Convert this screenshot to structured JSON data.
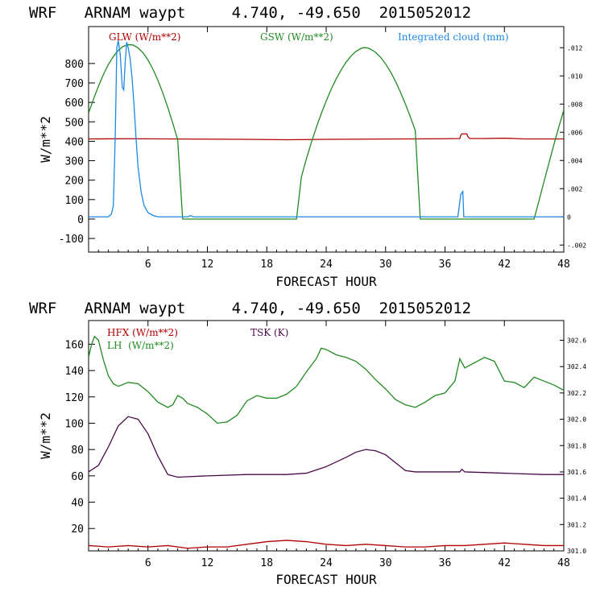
{
  "chart_data": [
    {
      "type": "line",
      "title": "WRF   ARNAM waypt     4.740, -49.650  2015052012",
      "xlabel": "FORECAST HOUR",
      "ylabel": "W/m**2",
      "xlim": [
        0,
        48
      ],
      "ylim": [
        -170,
        990
      ],
      "xticks": [
        6,
        12,
        18,
        24,
        30,
        36,
        42,
        48
      ],
      "yticks": [
        -100,
        0,
        100,
        200,
        300,
        400,
        500,
        600,
        700,
        800
      ],
      "y2lim": [
        -0.0025,
        0.0135
      ],
      "y2ticks": [
        -0.002,
        0,
        0.002,
        0.004,
        0.006,
        0.008,
        0.01,
        0.012
      ],
      "y2ticklabels": [
        "-.002",
        "0",
        ".002",
        ".004",
        ".006",
        ".008",
        ".010",
        ".012"
      ],
      "grid": false,
      "legend_position": "top",
      "series": [
        {
          "name": "GLW (W/m**2)",
          "axis": "left",
          "color": "#b00000",
          "points": [
            [
              0,
              412
            ],
            [
              4,
              413
            ],
            [
              8,
              412
            ],
            [
              12,
              411
            ],
            [
              16,
              410
            ],
            [
              20,
              408
            ],
            [
              24,
              410
            ],
            [
              28,
              411
            ],
            [
              32,
              412
            ],
            [
              36,
              413
            ],
            [
              37.5,
              414
            ],
            [
              37.6,
              432
            ],
            [
              37.7,
              438
            ],
            [
              38.2,
              438
            ],
            [
              38.3,
              425
            ],
            [
              38.5,
              414
            ],
            [
              40,
              414
            ],
            [
              42,
              416
            ],
            [
              44,
              412
            ],
            [
              48,
              412
            ]
          ]
        },
        {
          "name": "GSW (W/m**2)",
          "axis": "left",
          "color": "#228b22",
          "points": [
            [
              0,
              545
            ],
            [
              0.5,
              618
            ],
            [
              1,
              684
            ],
            [
              1.5,
              744
            ],
            [
              2,
              795
            ],
            [
              2.5,
              836
            ],
            [
              3,
              868
            ],
            [
              3.5,
              888
            ],
            [
              4,
              897
            ],
            [
              4.5,
              895
            ],
            [
              5,
              880
            ],
            [
              5.5,
              855
            ],
            [
              6,
              818
            ],
            [
              6.5,
              771
            ],
            [
              7,
              714
            ],
            [
              7.5,
              648
            ],
            [
              8,
              574
            ],
            [
              8.5,
              493
            ],
            [
              9,
              407
            ],
            [
              9.5,
              0
            ],
            [
              21,
              0
            ],
            [
              21.5,
              218
            ],
            [
              22,
              310
            ],
            [
              22.5,
              393
            ],
            [
              23,
              471
            ],
            [
              23.5,
              542
            ],
            [
              24,
              607
            ],
            [
              24.5,
              667
            ],
            [
              25,
              720
            ],
            [
              25.5,
              766
            ],
            [
              26,
              806
            ],
            [
              26.5,
              838
            ],
            [
              27,
              862
            ],
            [
              27.5,
              877
            ],
            [
              27.8,
              882
            ],
            [
              28.2,
              880
            ],
            [
              28.5,
              873
            ],
            [
              29,
              857
            ],
            [
              29.5,
              832
            ],
            [
              30,
              798
            ],
            [
              30.5,
              757
            ],
            [
              31,
              708
            ],
            [
              31.5,
              653
            ],
            [
              32,
              592
            ],
            [
              32.5,
              526
            ],
            [
              33,
              455
            ],
            [
              33.5,
              0
            ],
            [
              45,
              0
            ],
            [
              45.5,
              95
            ],
            [
              46,
              192
            ],
            [
              46.5,
              288
            ],
            [
              47,
              383
            ],
            [
              47.5,
              474
            ],
            [
              48,
              560
            ]
          ]
        },
        {
          "name": "Integrated cloud (mm)",
          "axis": "right",
          "color": "#1e88e5",
          "points": [
            [
              0,
              0
            ],
            [
              2.0,
              0
            ],
            [
              2.3,
              0.0002
            ],
            [
              2.5,
              0.0008
            ],
            [
              2.7,
              0.006
            ],
            [
              2.85,
              0.012
            ],
            [
              3.0,
              0.0125
            ],
            [
              3.2,
              0.0115
            ],
            [
              3.4,
              0.0092
            ],
            [
              3.55,
              0.009
            ],
            [
              3.7,
              0.011
            ],
            [
              3.85,
              0.0124
            ],
            [
              4.0,
              0.012
            ],
            [
              4.2,
              0.0112
            ],
            [
              4.4,
              0.0098
            ],
            [
              4.6,
              0.0078
            ],
            [
              4.8,
              0.0055
            ],
            [
              5.0,
              0.0035
            ],
            [
              5.3,
              0.0018
            ],
            [
              5.6,
              0.0008
            ],
            [
              6.0,
              0.0003
            ],
            [
              6.5,
              0.0001
            ],
            [
              7.0,
              0
            ],
            [
              10,
              0
            ],
            [
              10.3,
              8e-05
            ],
            [
              10.6,
              0
            ],
            [
              37.3,
              0
            ],
            [
              37.45,
              0.0008
            ],
            [
              37.6,
              0.0016
            ],
            [
              37.8,
              0.0018
            ],
            [
              37.9,
              0
            ],
            [
              48,
              0
            ]
          ]
        }
      ]
    },
    {
      "type": "line",
      "title": "WRF   ARNAM waypt     4.740, -49.650  2015052012",
      "xlabel": "FORECAST HOUR",
      "ylabel": "W/m**2",
      "xlim": [
        0,
        48
      ],
      "ylim": [
        3,
        178
      ],
      "xticks": [
        6,
        12,
        18,
        24,
        30,
        36,
        42,
        48
      ],
      "yticks": [
        20,
        40,
        60,
        80,
        100,
        120,
        140,
        160
      ],
      "y2lim": [
        301.0,
        302.75
      ],
      "y2ticks": [
        301.0,
        301.2,
        301.4,
        301.6,
        301.8,
        302.0,
        302.2,
        302.4,
        302.6
      ],
      "y2ticklabels": [
        "301.0",
        "301.2",
        "301.4",
        "301.6",
        "301.8",
        "302.0",
        "302.2",
        "302.4",
        "302.6"
      ],
      "grid": false,
      "legend_position": "top",
      "series": [
        {
          "name": "HFX (W/m**2)",
          "axis": "left",
          "color": "#b00000",
          "points": [
            [
              0,
              7
            ],
            [
              2,
              6
            ],
            [
              4,
              7
            ],
            [
              6,
              6
            ],
            [
              8,
              7
            ],
            [
              10,
              5
            ],
            [
              12,
              6
            ],
            [
              14,
              6
            ],
            [
              16,
              8
            ],
            [
              18,
              10
            ],
            [
              20,
              11
            ],
            [
              22,
              10
            ],
            [
              24,
              8
            ],
            [
              26,
              7
            ],
            [
              28,
              8
            ],
            [
              30,
              7
            ],
            [
              32,
              6
            ],
            [
              34,
              6
            ],
            [
              36,
              7
            ],
            [
              38,
              7
            ],
            [
              40,
              8
            ],
            [
              42,
              9
            ],
            [
              44,
              8
            ],
            [
              46,
              7
            ],
            [
              48,
              7
            ]
          ]
        },
        {
          "name": "LH  (W/m**2)",
          "axis": "left",
          "color": "#228b22",
          "points": [
            [
              0,
              150
            ],
            [
              0.3,
              160
            ],
            [
              0.6,
              166
            ],
            [
              1,
              163
            ],
            [
              1.5,
              148
            ],
            [
              2,
              136
            ],
            [
              2.5,
              130
            ],
            [
              3,
              128
            ],
            [
              4,
              131
            ],
            [
              5,
              130
            ],
            [
              6,
              124
            ],
            [
              7,
              116
            ],
            [
              8,
              112
            ],
            [
              8.5,
              114
            ],
            [
              9,
              121
            ],
            [
              9.5,
              119
            ],
            [
              10,
              115
            ],
            [
              11,
              112
            ],
            [
              12,
              107
            ],
            [
              13,
              100
            ],
            [
              14,
              101
            ],
            [
              15,
              106
            ],
            [
              16,
              117
            ],
            [
              17,
              121
            ],
            [
              18,
              119
            ],
            [
              19,
              119
            ],
            [
              20,
              122
            ],
            [
              21,
              128
            ],
            [
              22,
              139
            ],
            [
              23,
              149
            ],
            [
              23.5,
              157
            ],
            [
              24,
              156
            ],
            [
              25,
              152
            ],
            [
              26,
              150
            ],
            [
              27,
              147
            ],
            [
              28,
              141
            ],
            [
              29,
              133
            ],
            [
              30,
              126
            ],
            [
              31,
              118
            ],
            [
              32,
              114
            ],
            [
              33,
              112
            ],
            [
              34,
              116
            ],
            [
              35,
              121
            ],
            [
              36,
              123
            ],
            [
              37,
              132
            ],
            [
              37.5,
              149
            ],
            [
              38,
              142
            ],
            [
              39,
              146
            ],
            [
              40,
              150
            ],
            [
              41,
              147
            ],
            [
              42,
              132
            ],
            [
              43,
              131
            ],
            [
              44,
              127
            ],
            [
              45,
              135
            ],
            [
              46,
              132
            ],
            [
              47,
              129
            ],
            [
              48,
              125
            ]
          ]
        },
        {
          "name": "TSK (K)",
          "axis": "left",
          "color": "#4a0a4a",
          "points": [
            [
              0,
              63
            ],
            [
              1,
              68
            ],
            [
              2,
              82
            ],
            [
              3,
              98
            ],
            [
              4,
              105
            ],
            [
              5,
              103
            ],
            [
              6,
              92
            ],
            [
              7,
              75
            ],
            [
              8,
              61
            ],
            [
              9,
              59
            ],
            [
              12,
              60
            ],
            [
              16,
              61
            ],
            [
              20,
              61
            ],
            [
              22,
              62
            ],
            [
              24,
              67
            ],
            [
              26,
              74
            ],
            [
              27,
              78
            ],
            [
              28,
              80
            ],
            [
              29,
              79
            ],
            [
              30,
              76
            ],
            [
              31,
              70
            ],
            [
              32,
              64
            ],
            [
              33,
              63
            ],
            [
              36,
              63
            ],
            [
              37.5,
              63
            ],
            [
              37.7,
              65
            ],
            [
              38,
              63
            ],
            [
              42,
              62
            ],
            [
              46,
              61
            ],
            [
              48,
              61
            ]
          ]
        }
      ]
    }
  ]
}
